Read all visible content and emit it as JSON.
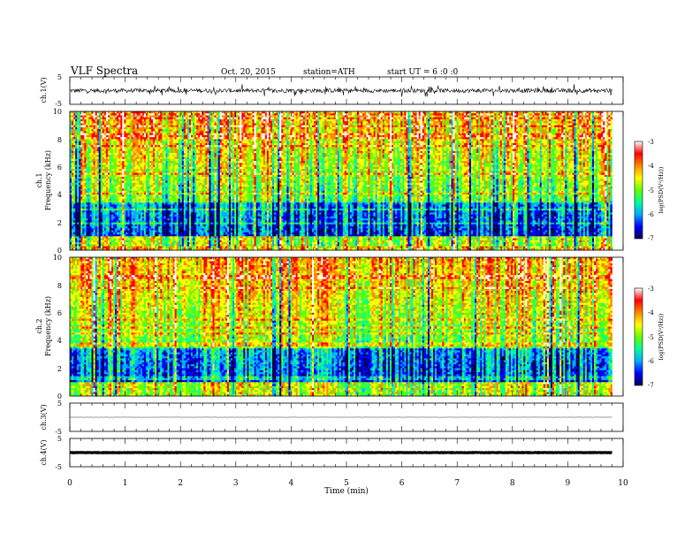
{
  "header": {
    "title": "VLF Spectra",
    "date": "Oct. 20, 2015",
    "station": "station=ATH",
    "start": "start UT = 6 :0 :0"
  },
  "chart_data": [
    {
      "type": "line",
      "ylabel": "ch.1(V)",
      "ylim": [
        -5,
        5
      ],
      "y_ticks": [
        "5",
        "-5"
      ],
      "baseline": 0,
      "noise_amplitude": 1.5
    },
    {
      "type": "heatmap",
      "ylabel_line1": "ch.1",
      "ylabel_line2": "Frequency (kHz)",
      "ylim": [
        0,
        10
      ],
      "y_ticks": [
        "0",
        "2",
        "4",
        "6",
        "8",
        "10"
      ],
      "colorbar": {
        "label": "log(PSD(V²/Hz))",
        "range": [
          -7,
          -3
        ],
        "ticks": [
          "-3",
          "-4",
          "-5",
          "-6",
          "-7"
        ]
      }
    },
    {
      "type": "heatmap",
      "ylabel_line1": "ch.2",
      "ylabel_line2": "Frequency (kHz)",
      "ylim": [
        0,
        10
      ],
      "y_ticks": [
        "0",
        "2",
        "4",
        "6",
        "8",
        "10"
      ],
      "colorbar": {
        "label": "log(PSD(V²/Hz))",
        "range": [
          -7,
          -3
        ],
        "ticks": [
          "-3",
          "-4",
          "-5",
          "-6",
          "-7"
        ]
      }
    },
    {
      "type": "line",
      "ylabel": "ch.3(V)",
      "ylim": [
        -5,
        5
      ],
      "y_ticks": [
        "5",
        "-5"
      ],
      "baseline": 0,
      "noise_amplitude": 0.1
    },
    {
      "type": "line",
      "ylabel": "ch.4(V)",
      "ylim": [
        -5,
        5
      ],
      "y_ticks": [
        "5",
        "-5"
      ],
      "baseline": 0,
      "noise_amplitude": 0.15
    }
  ],
  "x_axis": {
    "label": "Time (min)",
    "range": [
      0,
      10
    ],
    "data_end": 9.8,
    "ticks": [
      "0",
      "1",
      "2",
      "3",
      "4",
      "5",
      "6",
      "7",
      "8",
      "9",
      "10"
    ]
  },
  "colormap": [
    "#000050",
    "#0000ff",
    "#00aaff",
    "#00ff99",
    "#66ff00",
    "#ffff00",
    "#ff8800",
    "#ff0000",
    "#ffffff"
  ]
}
